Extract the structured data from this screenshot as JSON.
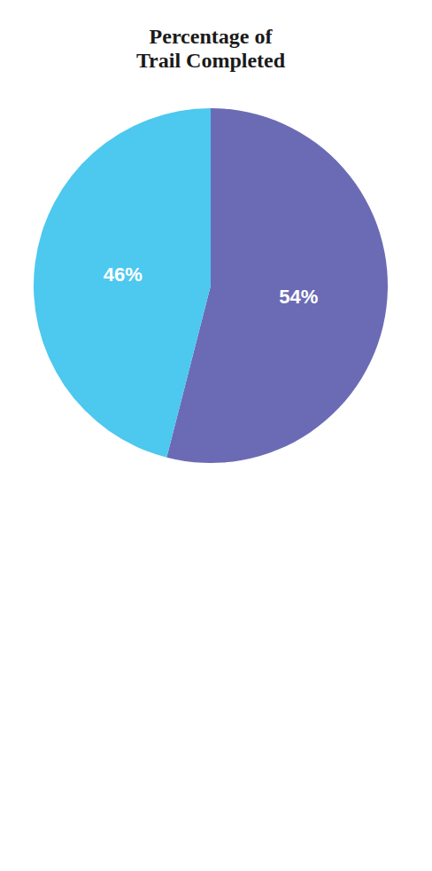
{
  "chart_data": {
    "type": "pie",
    "title": "Percentage of\nTrail Completed",
    "values": [
      54,
      46
    ],
    "value_labels": [
      "54%",
      "46%"
    ],
    "colors": [
      "#6B6BB5",
      "#4DC8EE"
    ],
    "data_labels": true
  }
}
